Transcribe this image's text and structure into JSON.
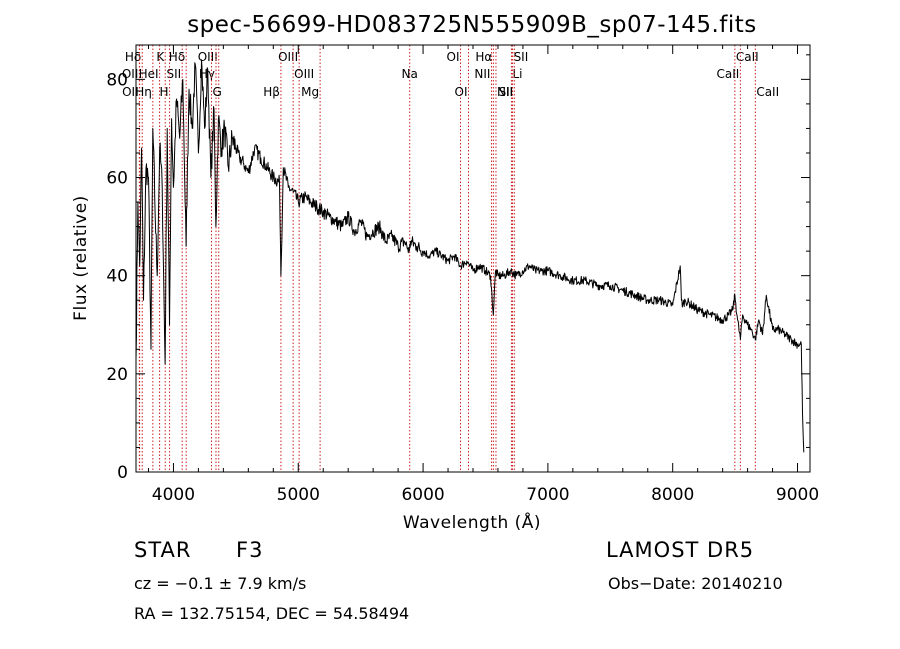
{
  "chart_data": {
    "type": "line",
    "title": "spec-56699-HD083725N555909B_sp07-145.fits",
    "xlabel": "Wavelength (Å)",
    "ylabel": "Flux (relative)",
    "xlim": [
      3700,
      9100
    ],
    "ylim": [
      0,
      87
    ],
    "xticks": [
      "4000",
      "5000",
      "6000",
      "7000",
      "8000",
      "9000"
    ],
    "yticks": [
      "0",
      "20",
      "40",
      "60",
      "80"
    ],
    "grid": false,
    "line_color": "#000000",
    "marker_color": "#cc2222",
    "spectrum": {
      "x": [
        3700,
        3715,
        3730,
        3745,
        3760,
        3780,
        3800,
        3820,
        3835,
        3850,
        3870,
        3890,
        3910,
        3933,
        3950,
        3968,
        3985,
        4000,
        4025,
        4050,
        4075,
        4101,
        4125,
        4150,
        4175,
        4200,
        4225,
        4250,
        4275,
        4300,
        4325,
        4340,
        4360,
        4385,
        4410,
        4440,
        4470,
        4500,
        4530,
        4560,
        4600,
        4650,
        4700,
        4750,
        4800,
        4850,
        4861,
        4880,
        4920,
        4960,
        5000,
        5050,
        5100,
        5150,
        5200,
        5250,
        5300,
        5350,
        5400,
        5450,
        5500,
        5550,
        5600,
        5650,
        5700,
        5750,
        5800,
        5850,
        5890,
        5900,
        5950,
        6000,
        6050,
        6100,
        6150,
        6200,
        6250,
        6300,
        6350,
        6400,
        6450,
        6500,
        6540,
        6563,
        6580,
        6600,
        6650,
        6700,
        6750,
        6800,
        6850,
        6900,
        6950,
        7000,
        7100,
        7200,
        7300,
        7400,
        7500,
        7600,
        7700,
        7800,
        7900,
        8000,
        8060,
        8070,
        8080,
        8100,
        8200,
        8300,
        8400,
        8450,
        8480,
        8498,
        8520,
        8542,
        8560,
        8600,
        8630,
        8662,
        8690,
        8720,
        8750,
        8800,
        8850,
        8900,
        8950,
        9000,
        9030,
        9040,
        9050
      ],
      "y": [
        23,
        55,
        42,
        66,
        35,
        62,
        60,
        25,
        70,
        56,
        40,
        66,
        58,
        22,
        70,
        30,
        72,
        58,
        76,
        68,
        80,
        46,
        78,
        70,
        83,
        65,
        84,
        70,
        82,
        60,
        74,
        50,
        72,
        66,
        70,
        62,
        68,
        66,
        64,
        63,
        61,
        66,
        64,
        62,
        60,
        59,
        40,
        62,
        58,
        57,
        55,
        56,
        55,
        54,
        53,
        52,
        51,
        50,
        52,
        49,
        51,
        48,
        49,
        50,
        47,
        48,
        46,
        47,
        45,
        47,
        46,
        45,
        44,
        45,
        44,
        43,
        44,
        42,
        43,
        41,
        42,
        41,
        40,
        32,
        41,
        40,
        40,
        41,
        40,
        41,
        42,
        41,
        41,
        41,
        40,
        39,
        39,
        38,
        38,
        37,
        36,
        35,
        35,
        34,
        42,
        35,
        34,
        35,
        33,
        32,
        31,
        32,
        33,
        36,
        31,
        27,
        32,
        30,
        29,
        27,
        31,
        28,
        36,
        29,
        29,
        28,
        27,
        26,
        26,
        12,
        4
      ]
    },
    "line_markers": [
      {
        "label": "Hδ",
        "x": 3750,
        "row": 1,
        "dir": "left"
      },
      {
        "label": "OII",
        "x": 3727,
        "row": 2,
        "dir": "left"
      },
      {
        "label": "OII",
        "x": 3729,
        "row": 3,
        "dir": "left"
      },
      {
        "label": "Hη",
        "x": 3835,
        "row": 3,
        "dir": "left"
      },
      {
        "label": "K",
        "x": 3934,
        "row": 1,
        "dir": "left"
      },
      {
        "label": "HeI",
        "x": 3889,
        "row": 2,
        "dir": "left"
      },
      {
        "label": "SII",
        "x": 4070,
        "row": 2,
        "dir": "left"
      },
      {
        "label": "H",
        "x": 3969,
        "row": 3,
        "dir": "left"
      },
      {
        "label": "Hδ",
        "x": 4102,
        "row": 1,
        "dir": "left"
      },
      {
        "label": "OIII",
        "x": 4363,
        "row": 1,
        "dir": "left"
      },
      {
        "label": "Hγ",
        "x": 4341,
        "row": 2,
        "dir": "left"
      },
      {
        "label": "G",
        "x": 4305,
        "row": 3,
        "dir": "right"
      },
      {
        "label": "Hβ",
        "x": 4861,
        "row": 3,
        "dir": "left"
      },
      {
        "label": "OIII",
        "x": 5007,
        "row": 1,
        "dir": "left"
      },
      {
        "label": "OIII",
        "x": 4959,
        "row": 2,
        "dir": "right"
      },
      {
        "label": "Mg",
        "x": 5175,
        "row": 3,
        "dir": "left"
      },
      {
        "label": "Na",
        "x": 5893,
        "row": 2,
        "dir": "center"
      },
      {
        "label": "OI",
        "x": 6300,
        "row": 1,
        "dir": "left"
      },
      {
        "label": "OI",
        "x": 6364,
        "row": 3,
        "dir": "left"
      },
      {
        "label": "Hα",
        "x": 6563,
        "row": 1,
        "dir": "left"
      },
      {
        "label": "NII",
        "x": 6548,
        "row": 2,
        "dir": "left"
      },
      {
        "label": "NII",
        "x": 6584,
        "row": 3,
        "dir": "right"
      },
      {
        "label": "SII",
        "x": 6717,
        "row": 1,
        "dir": "right"
      },
      {
        "label": "Li",
        "x": 6708,
        "row": 2,
        "dir": "right"
      },
      {
        "label": "SII",
        "x": 6731,
        "row": 3,
        "dir": "left"
      },
      {
        "label": "CaII",
        "x": 8498,
        "row": 1,
        "dir": "right"
      },
      {
        "label": "CaII",
        "x": 8542,
        "row": 2,
        "dir": "left"
      },
      {
        "label": "CaII",
        "x": 8662,
        "row": 3,
        "dir": "right"
      }
    ]
  },
  "info": {
    "object_class": "STAR",
    "subclass": "F3",
    "survey": "LAMOST DR5",
    "cz": "cz = −0.1 ± 7.9 km/s",
    "obs_date": "Obs−Date: 20140210",
    "coords": "RA = 132.75154, DEC =  54.58494"
  }
}
